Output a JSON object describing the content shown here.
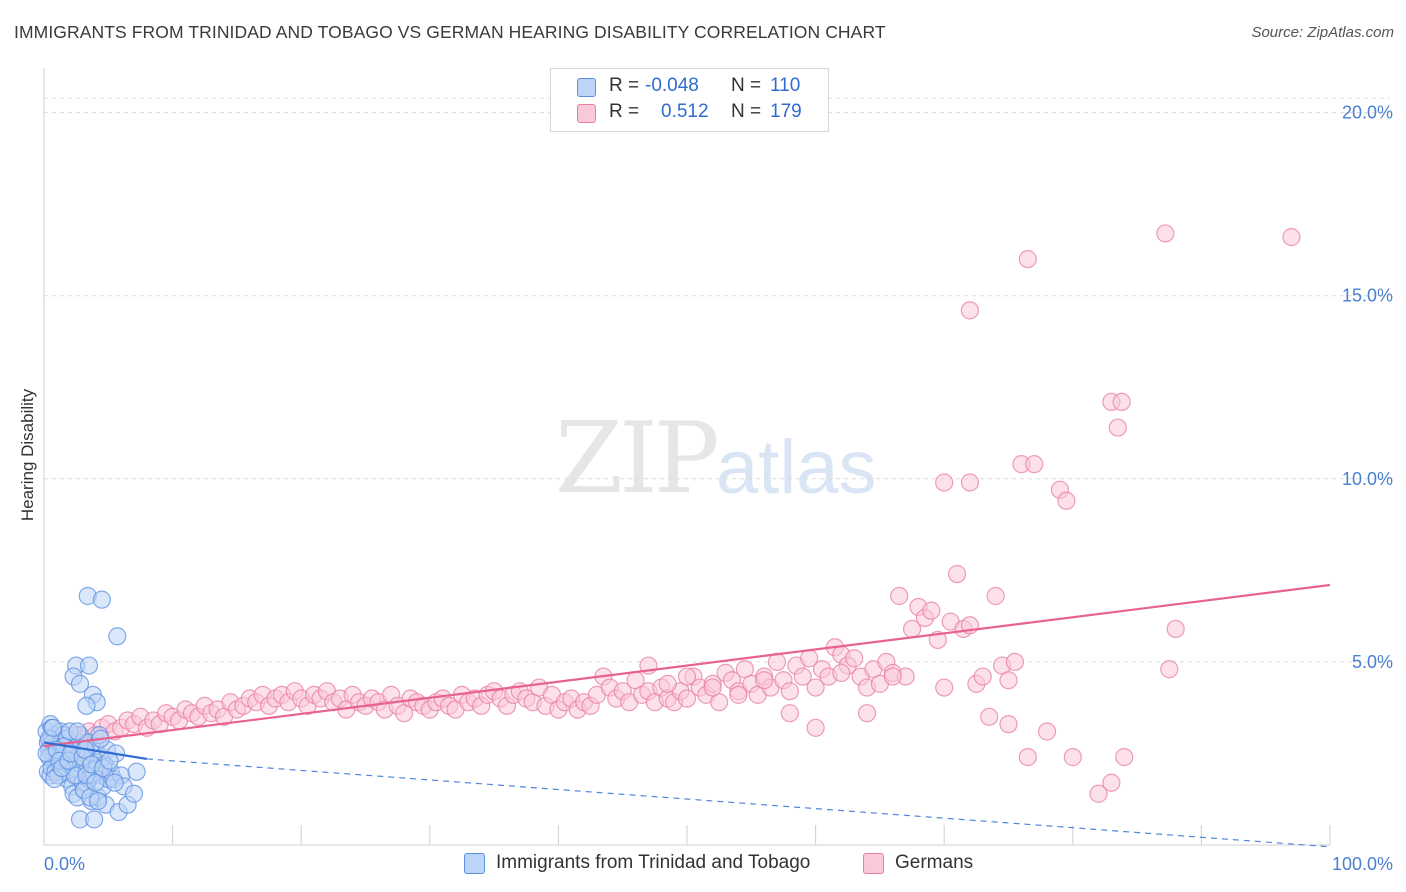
{
  "title": "IMMIGRANTS FROM TRINIDAD AND TOBAGO VS GERMAN HEARING DISABILITY CORRELATION CHART",
  "source": "Source: ZipAtlas.com",
  "watermark_a": "ZIP",
  "watermark_b": "atlas",
  "legend": {
    "r_label": "R =",
    "n_label": "N =",
    "rows": [
      {
        "r": "-0.048",
        "n": "110",
        "color": "#5b8fe0",
        "fill": "#bcd4f5"
      },
      {
        "r": "0.512",
        "n": "179",
        "color": "#e87ea0",
        "fill": "#f9c9d8"
      }
    ]
  },
  "bottom_legend": [
    {
      "label": "Immigrants from Trinidad and Tobago",
      "color": "#5b8fe0",
      "fill": "#bcd4f5"
    },
    {
      "label": "Germans",
      "color": "#e87ea0",
      "fill": "#f9c9d8"
    }
  ],
  "chart_data": {
    "type": "scatter",
    "title": "IMMIGRANTS FROM TRINIDAD AND TOBAGO VS GERMAN HEARING DISABILITY CORRELATION CHART",
    "xlabel": "",
    "ylabel": "Hearing Disability",
    "xlim": [
      0,
      100
    ],
    "ylim": [
      0,
      21
    ],
    "x_tick_labels": [
      "0.0%",
      "100.0%"
    ],
    "y_ticks": [
      5,
      10,
      15,
      20
    ],
    "y_tick_labels": [
      "5.0%",
      "10.0%",
      "15.0%",
      "20.0%"
    ],
    "grid": true,
    "legend_position": "top-center",
    "series": [
      {
        "name": "Immigrants from Trinidad and Tobago",
        "color": "#5b8fe0",
        "fill": "#bcd4f5",
        "trend": {
          "x0": 0,
          "y0": 2.8,
          "x1": 8,
          "y1": 2.35,
          "dashed_to": {
            "x": 100,
            "y": -0.3
          }
        },
        "points": [
          [
            0.2,
            3.1
          ],
          [
            0.3,
            2.8
          ],
          [
            0.4,
            2.6
          ],
          [
            0.5,
            3.3
          ],
          [
            0.6,
            2.9
          ],
          [
            0.7,
            2.4
          ],
          [
            0.8,
            2.2
          ],
          [
            0.9,
            3.0
          ],
          [
            1.0,
            2.7
          ],
          [
            1.1,
            2.5
          ],
          [
            0.3,
            2.0
          ],
          [
            0.5,
            1.9
          ],
          [
            0.6,
            3.2
          ],
          [
            0.7,
            2.8
          ],
          [
            0.8,
            2.6
          ],
          [
            1.0,
            2.3
          ],
          [
            1.2,
            2.1
          ],
          [
            1.3,
            3.1
          ],
          [
            1.4,
            2.9
          ],
          [
            1.5,
            2.6
          ],
          [
            1.6,
            2.2
          ],
          [
            1.7,
            2.0
          ],
          [
            1.8,
            1.8
          ],
          [
            1.9,
            2.5
          ],
          [
            2.0,
            2.8
          ],
          [
            2.1,
            2.3
          ],
          [
            2.2,
            1.6
          ],
          [
            2.3,
            1.4
          ],
          [
            2.4,
            2.1
          ],
          [
            2.5,
            2.7
          ],
          [
            2.6,
            1.9
          ],
          [
            2.7,
            2.4
          ],
          [
            2.8,
            3.0
          ],
          [
            2.9,
            2.2
          ],
          [
            3.0,
            1.7
          ],
          [
            3.1,
            2.6
          ],
          [
            3.2,
            1.5
          ],
          [
            3.3,
            2.0
          ],
          [
            3.4,
            2.8
          ],
          [
            3.5,
            1.8
          ],
          [
            3.6,
            2.3
          ],
          [
            3.7,
            1.2
          ],
          [
            3.8,
            2.5
          ],
          [
            3.9,
            1.9
          ],
          [
            4.0,
            2.7
          ],
          [
            4.1,
            2.1
          ],
          [
            4.2,
            1.3
          ],
          [
            4.3,
            3.0
          ],
          [
            4.4,
            1.9
          ],
          [
            4.5,
            2.4
          ],
          [
            4.6,
            1.6
          ],
          [
            4.7,
            2.2
          ],
          [
            4.8,
            1.1
          ],
          [
            4.9,
            2.6
          ],
          [
            5.0,
            1.8
          ],
          [
            5.2,
            2.0
          ],
          [
            5.4,
            1.8
          ],
          [
            5.6,
            2.5
          ],
          [
            5.8,
            0.9
          ],
          [
            6.0,
            1.9
          ],
          [
            6.2,
            1.6
          ],
          [
            6.5,
            1.1
          ],
          [
            7.0,
            1.4
          ],
          [
            7.2,
            2.0
          ],
          [
            3.4,
            6.8
          ],
          [
            4.5,
            6.7
          ],
          [
            5.7,
            5.7
          ],
          [
            2.5,
            4.9
          ],
          [
            3.5,
            4.9
          ],
          [
            2.3,
            4.6
          ],
          [
            2.8,
            4.4
          ],
          [
            3.8,
            4.1
          ],
          [
            4.1,
            3.9
          ],
          [
            3.3,
            3.8
          ],
          [
            1.5,
            3.0
          ],
          [
            1.8,
            2.9
          ],
          [
            0.4,
            2.4
          ],
          [
            0.6,
            2.1
          ],
          [
            0.9,
            2.0
          ],
          [
            1.1,
            1.9
          ],
          [
            1.3,
            2.4
          ],
          [
            1.6,
            2.7
          ],
          [
            2.0,
            3.1
          ],
          [
            2.2,
            2.6
          ],
          [
            2.4,
            1.9
          ],
          [
            2.6,
            1.3
          ],
          [
            2.8,
            0.7
          ],
          [
            3.1,
            1.5
          ],
          [
            3.3,
            1.9
          ],
          [
            3.6,
            1.3
          ],
          [
            3.9,
            0.7
          ],
          [
            4.2,
            1.2
          ],
          [
            4.4,
            2.9
          ],
          [
            0.2,
            2.5
          ],
          [
            0.4,
            2.9
          ],
          [
            0.7,
            3.2
          ],
          [
            0.8,
            1.8
          ],
          [
            1.0,
            2.6
          ],
          [
            1.2,
            2.3
          ],
          [
            1.4,
            2.1
          ],
          [
            1.9,
            2.3
          ],
          [
            2.1,
            2.5
          ],
          [
            2.6,
            3.1
          ],
          [
            3.0,
            2.4
          ],
          [
            3.2,
            2.6
          ],
          [
            3.7,
            2.2
          ],
          [
            4.0,
            1.7
          ],
          [
            4.6,
            2.1
          ],
          [
            5.1,
            2.3
          ],
          [
            5.5,
            1.7
          ]
        ]
      },
      {
        "name": "Germans",
        "color": "#e87ea0",
        "fill": "#f9c9d8",
        "trend": {
          "x0": 0,
          "y0": 2.7,
          "x1": 100,
          "y1": 7.1
        },
        "points": [
          [
            0.5,
            2.7
          ],
          [
            1.0,
            2.5
          ],
          [
            1.5,
            2.8
          ],
          [
            2.0,
            2.6
          ],
          [
            2.5,
            3.0
          ],
          [
            3.0,
            2.9
          ],
          [
            3.5,
            3.1
          ],
          [
            4.0,
            3.0
          ],
          [
            4.5,
            3.2
          ],
          [
            5.0,
            3.3
          ],
          [
            5.5,
            3.1
          ],
          [
            6.0,
            3.2
          ],
          [
            6.5,
            3.4
          ],
          [
            7.0,
            3.3
          ],
          [
            7.5,
            3.5
          ],
          [
            8.0,
            3.2
          ],
          [
            8.5,
            3.4
          ],
          [
            9.0,
            3.3
          ],
          [
            9.5,
            3.6
          ],
          [
            10.0,
            3.5
          ],
          [
            10.5,
            3.4
          ],
          [
            11.0,
            3.7
          ],
          [
            11.5,
            3.6
          ],
          [
            12.0,
            3.5
          ],
          [
            12.5,
            3.8
          ],
          [
            13.0,
            3.6
          ],
          [
            13.5,
            3.7
          ],
          [
            14.0,
            3.5
          ],
          [
            14.5,
            3.9
          ],
          [
            15.0,
            3.7
          ],
          [
            15.5,
            3.8
          ],
          [
            16.0,
            4.0
          ],
          [
            16.5,
            3.9
          ],
          [
            17.0,
            4.1
          ],
          [
            17.5,
            3.8
          ],
          [
            18.0,
            4.0
          ],
          [
            18.5,
            4.1
          ],
          [
            19.0,
            3.9
          ],
          [
            19.5,
            4.2
          ],
          [
            20.0,
            4.0
          ],
          [
            20.5,
            3.8
          ],
          [
            21.0,
            4.1
          ],
          [
            21.5,
            4.0
          ],
          [
            22.0,
            4.2
          ],
          [
            22.5,
            3.9
          ],
          [
            23.0,
            4.0
          ],
          [
            23.5,
            3.7
          ],
          [
            24.0,
            4.1
          ],
          [
            24.5,
            3.9
          ],
          [
            25.0,
            3.8
          ],
          [
            25.5,
            4.0
          ],
          [
            26.0,
            3.9
          ],
          [
            26.5,
            3.7
          ],
          [
            27.0,
            4.1
          ],
          [
            27.5,
            3.8
          ],
          [
            28.0,
            3.6
          ],
          [
            28.5,
            4.0
          ],
          [
            29.0,
            3.9
          ],
          [
            29.5,
            3.8
          ],
          [
            30.0,
            3.7
          ],
          [
            30.5,
            3.9
          ],
          [
            31.0,
            4.0
          ],
          [
            31.5,
            3.8
          ],
          [
            32.0,
            3.7
          ],
          [
            32.5,
            4.1
          ],
          [
            33.0,
            3.9
          ],
          [
            33.5,
            4.0
          ],
          [
            34.0,
            3.8
          ],
          [
            34.5,
            4.1
          ],
          [
            35.0,
            4.2
          ],
          [
            35.5,
            4.0
          ],
          [
            36.0,
            3.8
          ],
          [
            36.5,
            4.1
          ],
          [
            37.0,
            4.2
          ],
          [
            37.5,
            4.0
          ],
          [
            38.0,
            3.9
          ],
          [
            38.5,
            4.3
          ],
          [
            39.0,
            3.8
          ],
          [
            39.5,
            4.1
          ],
          [
            40.0,
            3.7
          ],
          [
            40.5,
            3.9
          ],
          [
            41.0,
            4.0
          ],
          [
            41.5,
            3.7
          ],
          [
            42.0,
            3.9
          ],
          [
            42.5,
            3.8
          ],
          [
            43.0,
            4.1
          ],
          [
            43.5,
            4.6
          ],
          [
            44.0,
            4.3
          ],
          [
            44.5,
            4.0
          ],
          [
            45.0,
            4.2
          ],
          [
            45.5,
            3.9
          ],
          [
            46.0,
            4.5
          ],
          [
            46.5,
            4.1
          ],
          [
            47.0,
            4.2
          ],
          [
            47.5,
            3.9
          ],
          [
            48.0,
            4.3
          ],
          [
            48.5,
            4.0
          ],
          [
            49.0,
            3.9
          ],
          [
            49.5,
            4.2
          ],
          [
            50.0,
            4.0
          ],
          [
            50.5,
            4.6
          ],
          [
            51.0,
            4.3
          ],
          [
            51.5,
            4.1
          ],
          [
            52.0,
            4.4
          ],
          [
            52.5,
            3.9
          ],
          [
            53.0,
            4.7
          ],
          [
            53.5,
            4.5
          ],
          [
            54.0,
            4.2
          ],
          [
            54.5,
            4.8
          ],
          [
            55.0,
            4.4
          ],
          [
            55.5,
            4.1
          ],
          [
            56.0,
            4.6
          ],
          [
            56.5,
            4.3
          ],
          [
            57.0,
            5.0
          ],
          [
            57.5,
            4.5
          ],
          [
            58.0,
            4.2
          ],
          [
            58.5,
            4.9
          ],
          [
            59.0,
            4.6
          ],
          [
            59.5,
            5.1
          ],
          [
            60.0,
            4.3
          ],
          [
            60.5,
            4.8
          ],
          [
            61.0,
            4.6
          ],
          [
            61.5,
            5.4
          ],
          [
            62.0,
            5.2
          ],
          [
            62.5,
            4.9
          ],
          [
            63.0,
            5.1
          ],
          [
            63.5,
            4.6
          ],
          [
            64.0,
            4.3
          ],
          [
            64.5,
            4.8
          ],
          [
            65.0,
            4.4
          ],
          [
            65.5,
            5.0
          ],
          [
            66.0,
            4.7
          ],
          [
            66.5,
            6.8
          ],
          [
            67.0,
            4.6
          ],
          [
            67.5,
            5.9
          ],
          [
            68.0,
            6.5
          ],
          [
            68.5,
            6.2
          ],
          [
            69.0,
            6.4
          ],
          [
            69.5,
            5.6
          ],
          [
            70.0,
            4.3
          ],
          [
            70.5,
            6.1
          ],
          [
            71.0,
            7.4
          ],
          [
            71.5,
            5.9
          ],
          [
            72.0,
            6.0
          ],
          [
            72.5,
            4.4
          ],
          [
            73.0,
            4.6
          ],
          [
            73.5,
            3.5
          ],
          [
            74.0,
            6.8
          ],
          [
            74.5,
            4.9
          ],
          [
            75.0,
            4.5
          ],
          [
            75.5,
            5.0
          ],
          [
            47.0,
            4.9
          ],
          [
            48.5,
            4.4
          ],
          [
            50.0,
            4.6
          ],
          [
            52.0,
            4.3
          ],
          [
            54.0,
            4.1
          ],
          [
            56.0,
            4.5
          ],
          [
            58.0,
            3.6
          ],
          [
            60.0,
            3.2
          ],
          [
            62.0,
            4.7
          ],
          [
            64.0,
            3.6
          ],
          [
            66.0,
            4.6
          ],
          [
            76.0,
            10.4
          ],
          [
            77.0,
            10.4
          ],
          [
            79.0,
            9.7
          ],
          [
            79.5,
            9.4
          ],
          [
            83.0,
            12.1
          ],
          [
            83.8,
            12.1
          ],
          [
            83.5,
            11.4
          ],
          [
            76.5,
            16.0
          ],
          [
            72.0,
            14.6
          ],
          [
            87.2,
            16.7
          ],
          [
            97.0,
            16.6
          ],
          [
            75.0,
            3.3
          ],
          [
            76.5,
            2.4
          ],
          [
            78.0,
            3.1
          ],
          [
            80.0,
            2.4
          ],
          [
            82.0,
            1.4
          ],
          [
            83.0,
            1.7
          ],
          [
            84.0,
            2.4
          ],
          [
            88.0,
            5.9
          ],
          [
            87.5,
            4.8
          ],
          [
            70.0,
            9.9
          ],
          [
            72.0,
            9.9
          ]
        ]
      }
    ]
  }
}
